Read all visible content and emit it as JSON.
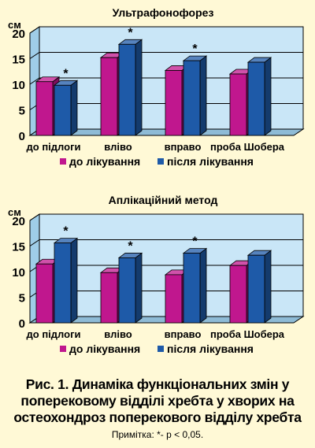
{
  "chart_data": [
    {
      "type": "bar",
      "title": "Ультрафонофорез",
      "ylabel": "см",
      "ylim": [
        0,
        20
      ],
      "yticks": [
        0,
        5,
        10,
        15,
        20
      ],
      "categories": [
        "до підлоги",
        "вліво",
        "вправо",
        "проба Шобера"
      ],
      "series": [
        {
          "name": "до лікування",
          "values": [
            10.5,
            15.2,
            12.7,
            12.0
          ],
          "color": "#C0178E"
        },
        {
          "name": "після лікування",
          "values": [
            9.8,
            17.8,
            14.6,
            14.3
          ],
          "color": "#1E5AA8"
        }
      ],
      "significance": [
        true,
        true,
        true,
        false
      ],
      "significance_mark": "*",
      "grid": true,
      "legend_position": "bottom"
    },
    {
      "type": "bar",
      "title": "Аплікаційний метод",
      "ylabel": "см",
      "ylim": [
        0,
        20
      ],
      "yticks": [
        0,
        5,
        10,
        15,
        20
      ],
      "categories": [
        "до підлоги",
        "вліво",
        "вправо",
        "проба Шобера"
      ],
      "series": [
        {
          "name": "до лікування",
          "values": [
            11.5,
            9.8,
            9.4,
            11.2
          ],
          "color": "#C0178E"
        },
        {
          "name": "після лікування",
          "values": [
            15.6,
            12.7,
            13.6,
            13.2
          ],
          "color": "#1E5AA8"
        }
      ],
      "significance": [
        true,
        true,
        true,
        false
      ],
      "significance_mark": "*",
      "grid": true,
      "legend_position": "bottom"
    }
  ],
  "caption": {
    "line1": "Рис. 1. Динаміка функціональних змін у",
    "line2": "поперековому відділі хребта у хворих на",
    "line3": "остеохондроз поперекового відділу хребта",
    "note": "Примітка: *- p < 0,05."
  }
}
